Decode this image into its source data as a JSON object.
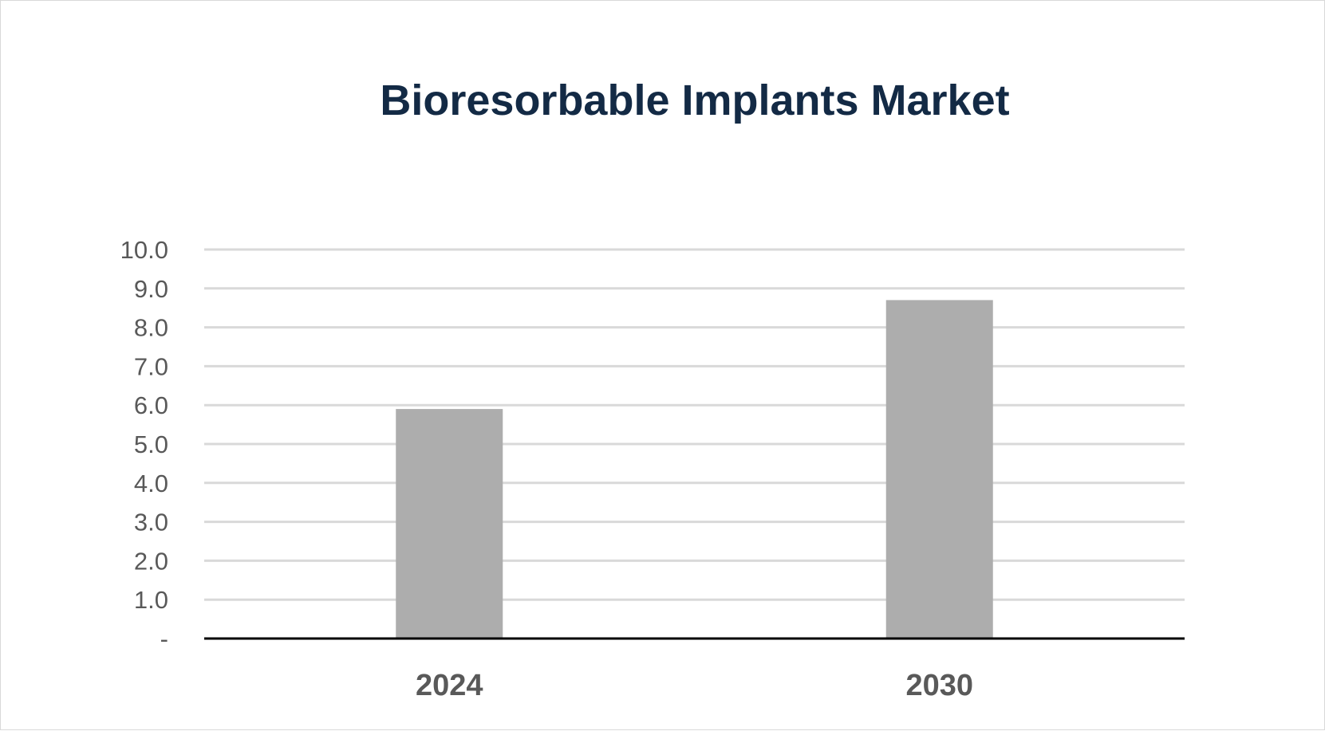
{
  "chart_data": {
    "type": "bar",
    "title": "Bioresorbable Implants Market",
    "categories": [
      "2024",
      "2030"
    ],
    "values": [
      5.9,
      8.7
    ],
    "ylim": [
      0,
      10
    ],
    "yticks": [
      0,
      1,
      2,
      3,
      4,
      5,
      6,
      7,
      8,
      9,
      10
    ],
    "ytick_labels": [
      "-",
      "1.0",
      "2.0",
      "3.0",
      "4.0",
      "5.0",
      "6.0",
      "7.0",
      "8.0",
      "9.0",
      "10.0"
    ],
    "xlabel": "",
    "ylabel": "",
    "grid": true,
    "legend": "none",
    "colors": {
      "bar": "#adadad",
      "grid": "#d9d9d9",
      "axis": "#000000",
      "title": "#132a45",
      "tick_text": "#595959"
    }
  }
}
